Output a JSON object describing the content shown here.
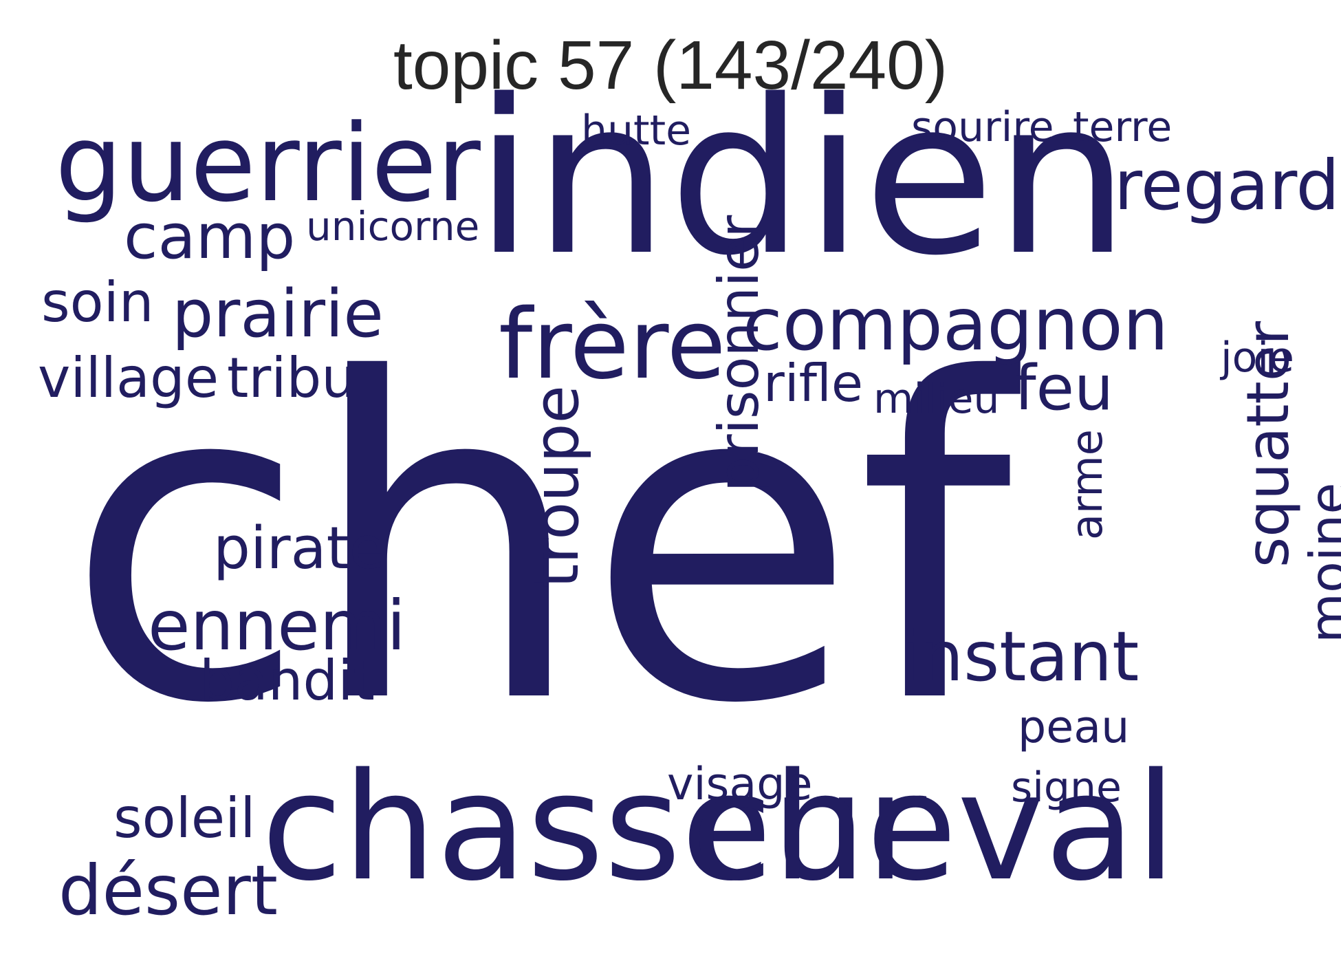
{
  "title": "topic 57 (143/240)",
  "color": "#211d60",
  "words": [
    "chef",
    "indien",
    "chasseur",
    "cheval",
    "guerrier",
    "frère",
    "compagnon",
    "regard",
    "prairie",
    "camp",
    "tribu",
    "village",
    "soin",
    "unicorne",
    "hutte",
    "sourire",
    "terre",
    "rifle",
    "milieu",
    "feu",
    "joie",
    "prisonnier",
    "troupe",
    "arme",
    "squatter",
    "moine",
    "instant",
    "pirate",
    "ennemi",
    "bandit",
    "peau",
    "signe",
    "visage",
    "soleil",
    "désert"
  ]
}
